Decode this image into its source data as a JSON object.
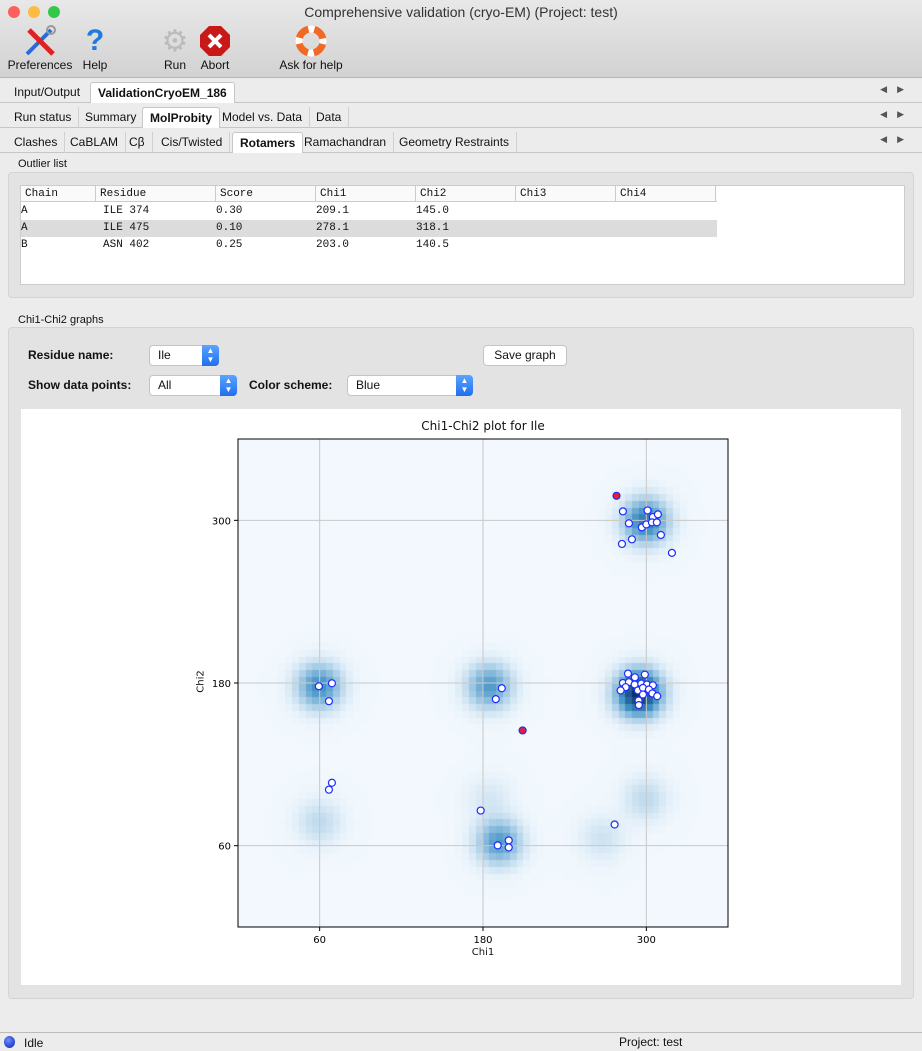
{
  "window": {
    "title": "Comprehensive validation (cryo-EM) (Project: test)"
  },
  "toolbar": {
    "preferences": "Preferences",
    "help": "Help",
    "run": "Run",
    "abort": "Abort",
    "ask_for_help": "Ask for help"
  },
  "tabs_level1": [
    {
      "label": "Input/Output",
      "selected": false
    },
    {
      "label": "ValidationCryoEM_186",
      "selected": true
    }
  ],
  "tabs_level2": [
    {
      "label": "Run status"
    },
    {
      "label": "Summary"
    },
    {
      "label": "MolProbity",
      "selected": true
    },
    {
      "label": "Model vs. Data"
    },
    {
      "label": "Data"
    }
  ],
  "tabs_level3": [
    {
      "label": "Clashes"
    },
    {
      "label": "CaBLAM"
    },
    {
      "label": "Cβ"
    },
    {
      "label": "Cis/Twisted"
    },
    {
      "label": "Rotamers",
      "selected": true
    },
    {
      "label": "Ramachandran"
    },
    {
      "label": "Geometry Restraints"
    }
  ],
  "outlier_list": {
    "title": "Outlier list",
    "columns": [
      "Chain",
      "Residue",
      "Score",
      "Chi1",
      "Chi2",
      "Chi3",
      "Chi4"
    ],
    "rows": [
      [
        "A",
        "ILE  374",
        "0.30",
        "209.1",
        "145.0",
        "",
        ""
      ],
      [
        "A",
        "ILE  475",
        "0.10",
        "278.1",
        "318.1",
        "",
        ""
      ],
      [
        "B",
        "ASN  402",
        "0.25",
        "203.0",
        "140.5",
        "",
        ""
      ]
    ],
    "selected_row": 1
  },
  "graphs": {
    "title": "Chi1-Chi2 graphs",
    "residue_label": "Residue name:",
    "residue_value": "Ile",
    "show_points_label": "Show data points:",
    "show_points_value": "All",
    "color_scheme_label": "Color scheme:",
    "color_scheme_value": "Blue",
    "save_button": "Save graph"
  },
  "chart_data": {
    "type": "scatter",
    "title": "Chi1-Chi2 plot for Ile",
    "xlabel": "Chi1",
    "ylabel": "Chi2",
    "xlim": [
      0,
      360
    ],
    "ylim": [
      0,
      360
    ],
    "xticks": [
      60,
      180,
      300
    ],
    "yticks": [
      60,
      180,
      300
    ],
    "grid": true,
    "background": "heatmap",
    "colormap": "Blues",
    "density_modes": [
      [
        300,
        300,
        0.6
      ],
      [
        60,
        178,
        0.5
      ],
      [
        185,
        178,
        0.45
      ],
      [
        295,
        173,
        1.0
      ],
      [
        192,
        63,
        0.45
      ],
      [
        60,
        78,
        0.14
      ],
      [
        300,
        95,
        0.14
      ],
      [
        268,
        66,
        0.1
      ],
      [
        185,
        95,
        0.08
      ]
    ],
    "point_color": "#1f2bff",
    "outlier_color": "#e8202a",
    "points": [
      [
        282.8,
        306.6
      ],
      [
        300.9,
        307.3
      ],
      [
        304.8,
        302.4
      ],
      [
        308.5,
        304.4
      ],
      [
        287.2,
        297.8
      ],
      [
        296.7,
        294.8
      ],
      [
        300.0,
        297.0
      ],
      [
        304.1,
        298.5
      ],
      [
        307.7,
        298.5
      ],
      [
        310.7,
        289.2
      ],
      [
        289.4,
        286.0
      ],
      [
        282.1,
        282.6
      ],
      [
        318.8,
        276.0
      ],
      [
        286.5,
        186.9
      ],
      [
        291.6,
        184.2
      ],
      [
        298.9,
        186.2
      ],
      [
        282.8,
        180.0
      ],
      [
        287.2,
        180.6
      ],
      [
        291.4,
        178.9
      ],
      [
        296.3,
        179.6
      ],
      [
        300.4,
        178.9
      ],
      [
        304.8,
        178.3
      ],
      [
        284.8,
        176.9
      ],
      [
        281.1,
        174.5
      ],
      [
        293.8,
        174.5
      ],
      [
        297.5,
        176.4
      ],
      [
        301.9,
        175.2
      ],
      [
        304.4,
        172.3
      ],
      [
        308.0,
        170.3
      ],
      [
        297.5,
        171.5
      ],
      [
        294.3,
        167.1
      ],
      [
        294.5,
        163.7
      ],
      [
        59.4,
        177.6
      ],
      [
        69.0,
        179.8
      ],
      [
        66.8,
        166.6
      ],
      [
        193.8,
        176.1
      ],
      [
        189.4,
        168.1
      ],
      [
        69.0,
        106.4
      ],
      [
        66.8,
        101.3
      ],
      [
        178.3,
        85.9
      ],
      [
        190.8,
        60.2
      ],
      [
        198.9,
        63.9
      ],
      [
        198.9,
        58.7
      ],
      [
        276.7,
        75.6
      ]
    ],
    "outliers": [
      [
        209.1,
        145.0
      ],
      [
        278.1,
        318.1
      ]
    ]
  },
  "status": {
    "state": "Idle",
    "project": "Project: test"
  }
}
